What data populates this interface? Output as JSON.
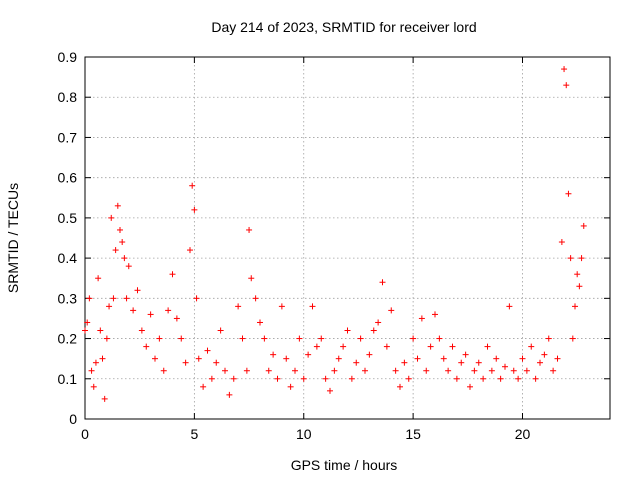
{
  "chart_data": {
    "type": "scatter",
    "title": "Day 214 of 2023, SRMTID for receiver lord",
    "xlabel": "GPS time / hours",
    "ylabel": "SRMTID / TECUs",
    "xlim": [
      0,
      24
    ],
    "ylim": [
      0,
      0.9
    ],
    "xticks": [
      0,
      5,
      10,
      15,
      20
    ],
    "yticks": [
      0,
      0.1,
      0.2,
      0.3,
      0.4,
      0.5,
      0.6,
      0.7,
      0.8,
      0.9
    ],
    "grid": true,
    "marker": "plus",
    "color": "#ff0000",
    "series": [
      {
        "name": "SRMTID",
        "x": [
          0.0,
          0.1,
          0.2,
          0.3,
          0.4,
          0.5,
          0.6,
          0.7,
          0.8,
          0.9,
          1.0,
          1.1,
          1.2,
          1.3,
          1.4,
          1.5,
          1.6,
          1.7,
          1.8,
          1.9,
          2.0,
          2.2,
          2.4,
          2.6,
          2.8,
          3.0,
          3.2,
          3.4,
          3.6,
          3.8,
          4.0,
          4.2,
          4.4,
          4.6,
          4.8,
          4.9,
          5.0,
          5.1,
          5.2,
          5.4,
          5.6,
          5.8,
          6.0,
          6.2,
          6.4,
          6.6,
          6.8,
          7.0,
          7.2,
          7.4,
          7.5,
          7.6,
          7.8,
          8.0,
          8.2,
          8.4,
          8.6,
          8.8,
          9.0,
          9.2,
          9.4,
          9.6,
          9.8,
          10.0,
          10.2,
          10.4,
          10.6,
          10.8,
          11.0,
          11.2,
          11.4,
          11.6,
          11.8,
          12.0,
          12.2,
          12.4,
          12.6,
          12.8,
          13.0,
          13.2,
          13.4,
          13.6,
          13.8,
          14.0,
          14.2,
          14.4,
          14.6,
          14.8,
          15.0,
          15.2,
          15.4,
          15.6,
          15.8,
          16.0,
          16.2,
          16.4,
          16.6,
          16.8,
          17.0,
          17.2,
          17.4,
          17.6,
          17.8,
          18.0,
          18.2,
          18.4,
          18.6,
          18.8,
          19.0,
          19.2,
          19.4,
          19.6,
          19.8,
          20.0,
          20.2,
          20.4,
          20.6,
          20.8,
          21.0,
          21.2,
          21.4,
          21.6,
          21.8,
          21.9,
          22.0,
          22.1,
          22.2,
          22.3,
          22.4,
          22.5,
          22.6,
          22.7,
          22.8
        ],
        "y": [
          0.22,
          0.24,
          0.3,
          0.12,
          0.08,
          0.14,
          0.35,
          0.22,
          0.15,
          0.05,
          0.2,
          0.28,
          0.5,
          0.3,
          0.42,
          0.53,
          0.47,
          0.44,
          0.4,
          0.3,
          0.38,
          0.27,
          0.32,
          0.22,
          0.18,
          0.26,
          0.15,
          0.2,
          0.12,
          0.27,
          0.36,
          0.25,
          0.2,
          0.14,
          0.42,
          0.58,
          0.52,
          0.3,
          0.15,
          0.08,
          0.17,
          0.1,
          0.14,
          0.22,
          0.12,
          0.06,
          0.1,
          0.28,
          0.2,
          0.12,
          0.47,
          0.35,
          0.3,
          0.24,
          0.2,
          0.12,
          0.16,
          0.1,
          0.28,
          0.15,
          0.08,
          0.12,
          0.2,
          0.1,
          0.16,
          0.28,
          0.18,
          0.2,
          0.1,
          0.07,
          0.12,
          0.15,
          0.18,
          0.22,
          0.1,
          0.14,
          0.2,
          0.12,
          0.16,
          0.22,
          0.24,
          0.34,
          0.18,
          0.27,
          0.12,
          0.08,
          0.14,
          0.1,
          0.2,
          0.15,
          0.25,
          0.12,
          0.18,
          0.26,
          0.2,
          0.15,
          0.12,
          0.18,
          0.1,
          0.14,
          0.16,
          0.08,
          0.12,
          0.14,
          0.1,
          0.18,
          0.12,
          0.15,
          0.1,
          0.13,
          0.28,
          0.12,
          0.1,
          0.15,
          0.12,
          0.18,
          0.1,
          0.14,
          0.16,
          0.2,
          0.12,
          0.15,
          0.44,
          0.87,
          0.83,
          0.56,
          0.4,
          0.2,
          0.28,
          0.36,
          0.33,
          0.4,
          0.48
        ]
      }
    ]
  }
}
